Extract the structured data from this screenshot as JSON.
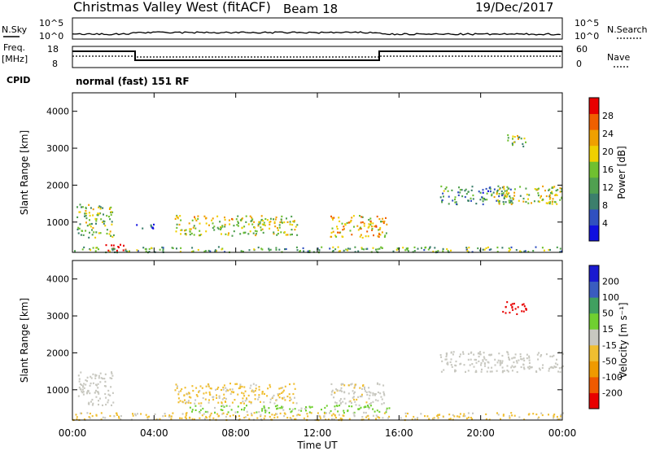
{
  "header": {
    "title": "Christmas Valley West (fitACF)",
    "beam": "Beam 18",
    "date": "19/Dec/2017"
  },
  "top_panels": {
    "nsky_label": "N.Sky",
    "nsearch_label": "N.Search",
    "noise_ticks": [
      "10^5",
      "10^0"
    ],
    "freq_label": "Freq.",
    "freq_unit": "[MHz]",
    "freq_ticks": [
      "18",
      "8"
    ],
    "nave_label": "Nave",
    "nave_ticks": [
      "60",
      "0"
    ],
    "cpid_label": "CPID",
    "cpid_text": "normal (fast) 151 RF"
  },
  "colors": {
    "power": [
      "#1010e0",
      "#3050c0",
      "#3c7f6c",
      "#50a050",
      "#70c030",
      "#f0d000",
      "#f0a000",
      "#f06000",
      "#e80000"
    ],
    "velocity": [
      "#e80000",
      "#f05a00",
      "#f09a00",
      "#f0be30",
      "#c8c8c0",
      "#70d030",
      "#40a060",
      "#3a5cc0",
      "#1a1ad0"
    ]
  },
  "chart_data": [
    {
      "type": "heatmap",
      "name": "power",
      "ylabel": "Slant Range [km]",
      "colorbar_label": "Power [dB]",
      "colorbar_ticks": [
        "28",
        "24",
        "20",
        "16",
        "12",
        "8",
        "4"
      ],
      "colorbar_range": [
        0,
        30
      ],
      "x_ticks": [
        "00:00",
        "04:00",
        "08:00",
        "12:00",
        "16:00",
        "20:00",
        "00:00"
      ],
      "xlim_hours": [
        0,
        24
      ],
      "y_ticks": [
        "4000",
        "3000",
        "2000",
        "1000"
      ],
      "ylim_km": [
        180,
        4500
      ],
      "echo_regions": [
        {
          "t0": 0.2,
          "t1": 2.0,
          "r0": 600,
          "r1": 1500,
          "p": 14
        },
        {
          "t0": 1.5,
          "t1": 2.6,
          "r0": 200,
          "r1": 420,
          "p": 30
        },
        {
          "t0": 3.0,
          "t1": 4.0,
          "r0": 850,
          "r1": 1000,
          "p": 6
        },
        {
          "t0": 5.0,
          "t1": 11.0,
          "r0": 650,
          "r1": 1200,
          "p": 17
        },
        {
          "t0": 12.6,
          "t1": 15.4,
          "r0": 600,
          "r1": 1200,
          "p": 20
        },
        {
          "t0": 18.0,
          "t1": 21.5,
          "r0": 1500,
          "r1": 2000,
          "p": 10
        },
        {
          "t0": 20.5,
          "t1": 24.0,
          "r0": 1500,
          "r1": 2000,
          "p": 16
        },
        {
          "t0": 21.2,
          "t1": 22.2,
          "r0": 3050,
          "r1": 3400,
          "p": 14
        },
        {
          "t0": 0.0,
          "t1": 24.0,
          "r0": 200,
          "r1": 350,
          "p": 12
        }
      ]
    },
    {
      "type": "heatmap",
      "name": "velocity",
      "ylabel": "Slant Range [km]",
      "xlabel": "Time UT",
      "colorbar_label": "Velocity [m s⁻¹]",
      "colorbar_ticks": [
        "200",
        "100",
        "50",
        "15",
        "-15",
        "-50",
        "-100",
        "-200"
      ],
      "colorbar_range": [
        -250,
        250
      ],
      "x_ticks": [
        "00:00",
        "04:00",
        "08:00",
        "12:00",
        "16:00",
        "20:00",
        "00:00"
      ],
      "xlim_hours": [
        0,
        24
      ],
      "y_ticks": [
        "4000",
        "3000",
        "2000",
        "1000"
      ],
      "ylim_km": [
        180,
        4500
      ],
      "echo_regions": [
        {
          "t0": 0.2,
          "t1": 2.0,
          "r0": 600,
          "r1": 1500,
          "v": 0
        },
        {
          "t0": 5.0,
          "t1": 11.0,
          "r0": 650,
          "r1": 1200,
          "v": -40
        },
        {
          "t0": 5.5,
          "t1": 15.5,
          "r0": 400,
          "r1": 600,
          "v": 40
        },
        {
          "t0": 12.6,
          "t1": 15.4,
          "r0": 600,
          "r1": 1200,
          "v": -10
        },
        {
          "t0": 18.0,
          "t1": 24.0,
          "r0": 1500,
          "r1": 2050,
          "v": 0
        },
        {
          "t0": 21.0,
          "t1": 22.2,
          "r0": 3050,
          "r1": 3400,
          "v": -220
        },
        {
          "t0": 0.0,
          "t1": 24.0,
          "r0": 200,
          "r1": 400,
          "v": -40
        }
      ]
    }
  ]
}
